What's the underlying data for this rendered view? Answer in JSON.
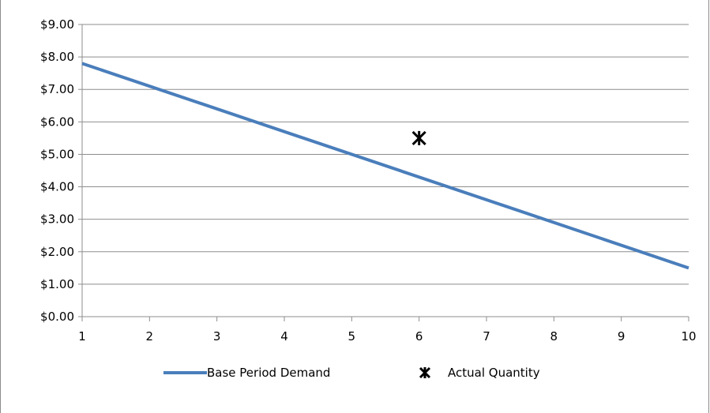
{
  "chart_data": {
    "type": "line",
    "x": [
      1,
      2,
      3,
      4,
      5,
      6,
      7,
      8,
      9,
      10
    ],
    "xlim": [
      1,
      10
    ],
    "ylim": [
      0,
      9
    ],
    "x_ticks": [
      "1",
      "2",
      "3",
      "4",
      "5",
      "6",
      "7",
      "8",
      "9",
      "10"
    ],
    "y_ticks": [
      "$0.00",
      "$1.00",
      "$2.00",
      "$3.00",
      "$4.00",
      "$5.00",
      "$6.00",
      "$7.00",
      "$8.00",
      "$9.00"
    ],
    "grid": "horizontal",
    "legend_position": "bottom",
    "series": [
      {
        "name": "Base Period Demand",
        "style": "line",
        "color": "#4a7ebb",
        "x": [
          1,
          10
        ],
        "y": [
          7.8,
          1.5
        ]
      },
      {
        "name": "Actual Quantity",
        "style": "marker",
        "marker": "asterisk",
        "color": "#000000",
        "x": [
          6
        ],
        "y": [
          5.5
        ]
      }
    ]
  }
}
